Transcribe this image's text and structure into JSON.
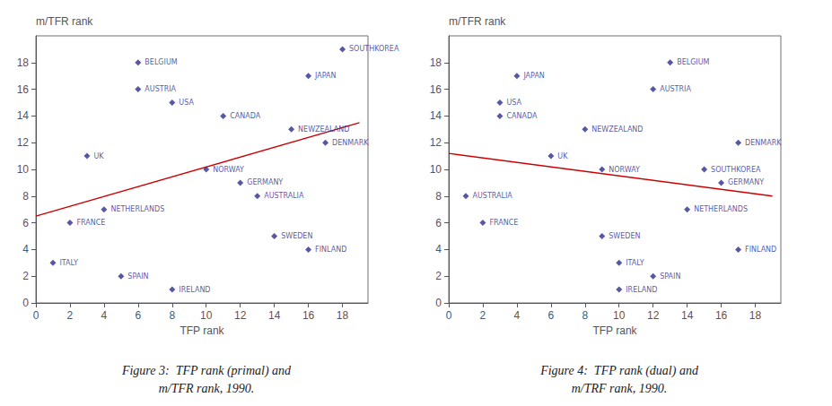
{
  "chart_data": [
    {
      "type": "scatter",
      "title": "Figure 3:  TFP rank (primal) and",
      "subtitle": "m/TFR rank, 1990.",
      "xlabel": "TFP rank",
      "ylabel": "m/TFR rank",
      "xlim": [
        0,
        19.5
      ],
      "ylim": [
        0,
        20
      ],
      "xticks": [
        0,
        2,
        4,
        6,
        8,
        10,
        12,
        14,
        16,
        18
      ],
      "yticks": [
        0,
        2,
        4,
        6,
        8,
        10,
        12,
        14,
        16,
        18
      ],
      "grid": false,
      "series": [
        {
          "type": "scatter",
          "marker": "diamond",
          "color": "#2e2e8b",
          "labels": [
            "SOUTHKOREA",
            "JAPAN",
            "BELGIUM",
            "AUSTRIA",
            "USA",
            "CANADA",
            "NEWZEALAND",
            "DENMARK",
            "UK",
            "NORWAY",
            "GERMANY",
            "AUSTRALIA",
            "NETHERLANDS",
            "FRANCE",
            "SWEDEN",
            "FINLAND",
            "ITALY",
            "SPAIN",
            "IRELAND"
          ],
          "x": [
            18,
            16,
            6,
            6,
            8,
            11,
            15,
            17,
            3,
            10,
            12,
            13,
            4,
            2,
            14,
            16,
            1,
            5,
            8
          ],
          "values": [
            19,
            17,
            18,
            16,
            15,
            14,
            13,
            12,
            11,
            10,
            9,
            8,
            7,
            6,
            5,
            4,
            3,
            2,
            1
          ]
        },
        {
          "type": "line",
          "line_style": "solid",
          "color": "#cc0000",
          "x": [
            0,
            19
          ],
          "values": [
            6.5,
            13.5
          ]
        }
      ]
    },
    {
      "type": "scatter",
      "title": "Figure 4:  TFP rank (dual) and",
      "subtitle": "m/TRF rank, 1990.",
      "xlabel": "TFP rank",
      "ylabel": "m/TFR rank",
      "xlim": [
        0,
        19.5
      ],
      "ylim": [
        0,
        20
      ],
      "xticks": [
        0,
        2,
        4,
        6,
        8,
        10,
        12,
        14,
        16,
        18
      ],
      "yticks": [
        0,
        2,
        4,
        6,
        8,
        10,
        12,
        14,
        16,
        18
      ],
      "grid": false,
      "series": [
        {
          "type": "scatter",
          "marker": "diamond",
          "color": "#2e2e8b",
          "labels": [
            "BELGIUM",
            "JAPAN",
            "AUSTRIA",
            "USA",
            "CANADA",
            "NEWZEALAND",
            "DENMARK",
            "UK",
            "NORWAY",
            "SOUTHKOREA",
            "GERMANY",
            "AUSTRALIA",
            "NETHERLANDS",
            "FRANCE",
            "SWEDEN",
            "FINLAND",
            "ITALY",
            "SPAIN",
            "IRELAND"
          ],
          "x": [
            13,
            4,
            12,
            3,
            3,
            8,
            17,
            6,
            9,
            15,
            16,
            1,
            14,
            2,
            9,
            17,
            10,
            12,
            10
          ],
          "values": [
            18,
            17,
            16,
            15,
            14,
            13,
            12,
            11,
            10,
            10,
            9,
            8,
            7,
            6,
            5,
            4,
            3,
            2,
            1
          ]
        },
        {
          "type": "line",
          "line_style": "solid",
          "color": "#cc0000",
          "x": [
            0,
            19
          ],
          "values": [
            11.2,
            8.0
          ]
        }
      ]
    }
  ]
}
